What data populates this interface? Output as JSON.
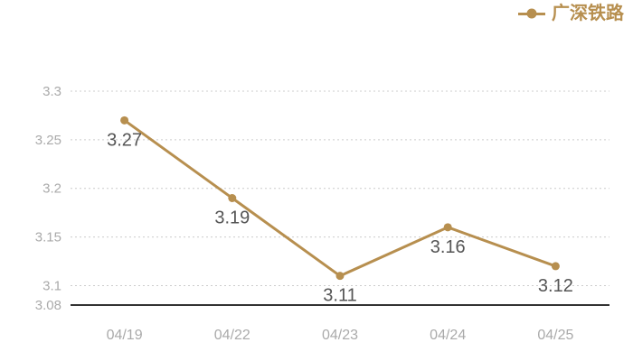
{
  "legend": {
    "label": "广深铁路",
    "position": "top-right"
  },
  "colors": {
    "series": "#b78f4f",
    "value_label": "#555555",
    "axis_label": "#aaaaaa",
    "gridline": "#cccccc",
    "axis_line": "#333333",
    "background": "#ffffff"
  },
  "chart_data": {
    "type": "line",
    "title": "",
    "categories": [
      "04/19",
      "04/22",
      "04/23",
      "04/24",
      "04/25"
    ],
    "series": [
      {
        "name": "广深铁路",
        "values": [
          3.27,
          3.19,
          3.11,
          3.16,
          3.12
        ],
        "point_labels": [
          "3.27",
          "3.19",
          "3.11",
          "3.16",
          "3.12"
        ]
      }
    ],
    "xlabel": "",
    "ylabel": "",
    "ylim": [
      3.08,
      3.3
    ],
    "y_ticks": [
      3.08,
      3.1,
      3.15,
      3.2,
      3.25,
      3.3
    ],
    "y_tick_labels": [
      "3.08",
      "3.1",
      "3.15",
      "3.2",
      "3.25",
      "3.3"
    ],
    "grid": "horizontal-dotted",
    "baseline_tick": "3.08",
    "legend_position": "top-right",
    "point_label_position": "below"
  }
}
